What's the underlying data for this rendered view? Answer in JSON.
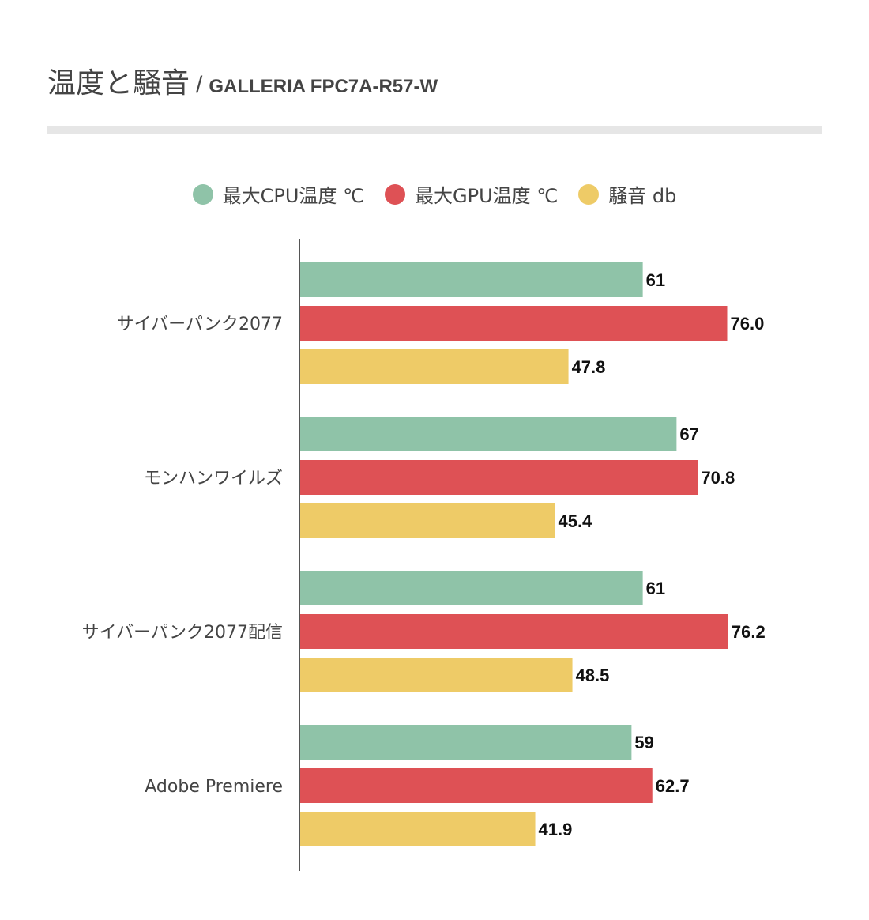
{
  "title": {
    "main": "温度と騒音",
    "separator": "/",
    "sub": "GALLERIA FPC7A-R57-W"
  },
  "colors": {
    "cpu": "#8fc3a8",
    "gpu": "#de5155",
    "noise": "#eecb67",
    "axis": "#555555",
    "rule": "#e6e6e6"
  },
  "chart_data": {
    "type": "bar",
    "orientation": "horizontal",
    "title": "温度と騒音 / GALLERIA FPC7A-R57-W",
    "categories": [
      "サイバーパンク2077",
      "モンハンワイルズ",
      "サイバーパンク2077配信",
      "Adobe Premiere"
    ],
    "series": [
      {
        "name": "最大CPU温度 ℃",
        "values": [
          61,
          67,
          61,
          59
        ],
        "labels": [
          "61",
          "67",
          "61",
          "59"
        ]
      },
      {
        "name": "最大GPU温度 ℃",
        "values": [
          76.0,
          70.8,
          76.2,
          62.7
        ],
        "labels": [
          "76.0",
          "70.8",
          "76.2",
          "62.7"
        ]
      },
      {
        "name": "騒音 db",
        "values": [
          47.8,
          45.4,
          48.5,
          41.9
        ],
        "labels": [
          "47.8",
          "45.4",
          "48.5",
          "41.9"
        ]
      }
    ],
    "xlim": [
      0,
      80
    ],
    "grid": false,
    "legend": "top-center",
    "xlabel": "",
    "ylabel": ""
  }
}
